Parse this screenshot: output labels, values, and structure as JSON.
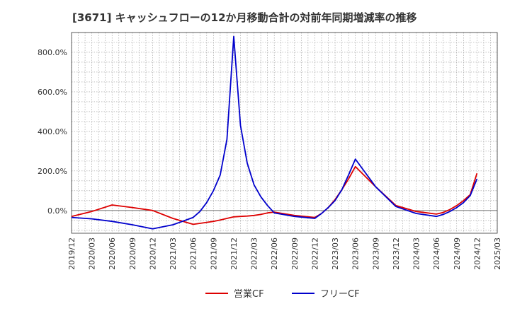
{
  "chart_data": {
    "type": "line",
    "title": "[3671]  キャッシュフローの12か月移動合計の対前年同期増減率の推移",
    "x": [
      "2019/12",
      "2020/03",
      "2020/06",
      "2020/09",
      "2020/12",
      "2021/03",
      "2021/06",
      "2021/07",
      "2021/08",
      "2021/09",
      "2021/10",
      "2021/11",
      "2021/12",
      "2022/01",
      "2022/02",
      "2022/03",
      "2022/04",
      "2022/05",
      "2022/06",
      "2022/09",
      "2022/12",
      "2023/01",
      "2023/02",
      "2023/03",
      "2023/04",
      "2023/05",
      "2023/06",
      "2023/09",
      "2023/12",
      "2024/03",
      "2024/06",
      "2024/07",
      "2024/08",
      "2024/09",
      "2024/10",
      "2024/11",
      "2024/12"
    ],
    "x_ticks": [
      "2019/12",
      "2020/03",
      "2020/06",
      "2020/09",
      "2020/12",
      "2021/03",
      "2021/06",
      "2021/09",
      "2021/12",
      "2022/03",
      "2022/06",
      "2022/09",
      "2022/12",
      "2023/03",
      "2023/06",
      "2023/09",
      "2023/12",
      "2024/03",
      "2024/06",
      "2024/09",
      "2024/12",
      "2025/03"
    ],
    "y_ticks": [
      "0.0%",
      "200.0%",
      "400.0%",
      "600.0%",
      "800.0%"
    ],
    "y_tick_values": [
      0,
      200,
      400,
      600,
      800
    ],
    "ylim": [
      -115,
      900
    ],
    "xlim": [
      "2019/12",
      "2025/03"
    ],
    "grid": true,
    "legend_position": "bottom",
    "series": [
      {
        "name": "営業CF",
        "color": "#dd0000",
        "values": [
          -30,
          -5,
          28,
          15,
          0,
          -40,
          -70,
          -65,
          -60,
          -55,
          -48,
          -40,
          -32,
          -30,
          -28,
          -25,
          -20,
          -12,
          -8,
          -25,
          -35,
          -15,
          15,
          55,
          105,
          160,
          222,
          120,
          25,
          -5,
          -18,
          -10,
          5,
          25,
          50,
          80,
          188
        ]
      },
      {
        "name": "フリーCF",
        "color": "#0000cc",
        "values": [
          -35,
          -42,
          -55,
          -72,
          -93,
          -72,
          -35,
          -5,
          40,
          100,
          180,
          360,
          880,
          430,
          240,
          130,
          70,
          25,
          -12,
          -30,
          -40,
          -15,
          15,
          50,
          105,
          180,
          260,
          120,
          20,
          -15,
          -30,
          -20,
          -5,
          15,
          40,
          75,
          160
        ]
      }
    ]
  }
}
